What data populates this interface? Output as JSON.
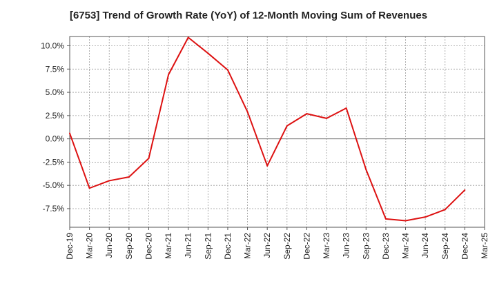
{
  "chart_data": {
    "type": "line",
    "title": "[6753]  Trend of Growth Rate (YoY) of 12-Month Moving Sum of Revenues",
    "xlabel": "",
    "ylabel": "",
    "x_ticks": [
      "Dec-19",
      "Mar-20",
      "Jun-20",
      "Sep-20",
      "Dec-20",
      "Mar-21",
      "Jun-21",
      "Sep-21",
      "Dec-21",
      "Mar-22",
      "Jun-22",
      "Sep-22",
      "Dec-22",
      "Mar-23",
      "Jun-23",
      "Sep-23",
      "Dec-23",
      "Mar-24",
      "Jun-24",
      "Sep-24",
      "Dec-24",
      "Mar-25"
    ],
    "y_ticks": [
      10.0,
      7.5,
      5.0,
      2.5,
      0.0,
      -2.5,
      -5.0,
      -7.5
    ],
    "y_tick_labels": [
      "10.0%",
      "7.5%",
      "5.0%",
      "2.5%",
      "0.0%",
      "-2.5%",
      "-5.0%",
      "-7.5%"
    ],
    "ylim": [
      -9.5,
      11.0
    ],
    "grid": true,
    "legend": "none",
    "series": [
      {
        "color": "#dd1111",
        "values": [
          0.6,
          -5.3,
          -4.5,
          -4.1,
          -2.1,
          6.9,
          10.9,
          9.2,
          7.4,
          2.9,
          -2.9,
          1.4,
          2.7,
          2.2,
          3.3,
          -3.3,
          -8.6,
          -8.8,
          -8.4,
          -7.6,
          -5.5,
          null
        ]
      }
    ]
  }
}
